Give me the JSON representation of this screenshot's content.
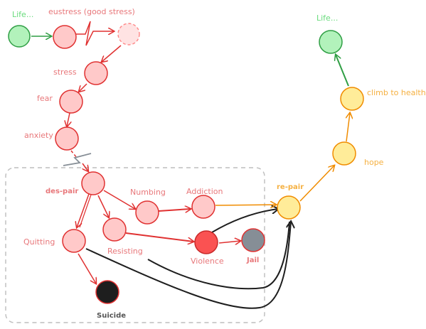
{
  "colors": {
    "green": "#2f9e44",
    "green_fill": "#b2f2bb",
    "red": "#e03131",
    "red_text": "#e8777a",
    "red_fill": "#ffc9c9",
    "yellow": "#f08c00",
    "yellow_text": "#f5b041",
    "yellow_fill": "#ffec99",
    "dark": "#1e1e1e",
    "gray_fill": "#868e96",
    "strong_red_fill": "#fa5252",
    "dashed_box": "#bdbdbd"
  },
  "labels": {
    "life_start": "Life...",
    "eustress": "eustress (good stress)",
    "stress": "stress",
    "fear": "fear",
    "anxiety": "anxiety",
    "despair": "des-pair",
    "numbing": "Numbing",
    "addiction": "Addiction",
    "quitting": "Quitting",
    "resisting": "Resisting",
    "violence": "Violence",
    "jail": "Jail",
    "suicide": "Suicide",
    "repair": "re-pair",
    "hope": "hope",
    "climb": "climb to health",
    "life_end": "Life..."
  }
}
